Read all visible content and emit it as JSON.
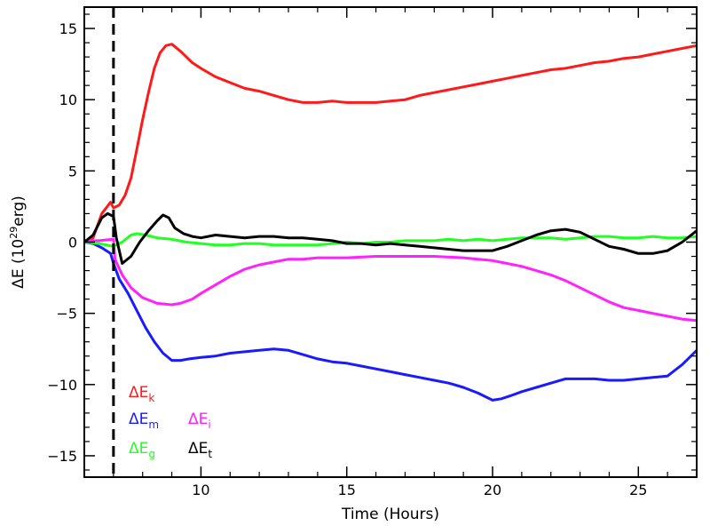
{
  "chart_data": {
    "type": "line",
    "xlabel": "Time (Hours)",
    "ylabel": {
      "base": "ΔE  (10",
      "sup": "29",
      "suffix": "erg)"
    },
    "xlim": [
      6,
      27
    ],
    "ylim": [
      -16.5,
      16.5
    ],
    "x_ticks": [
      10,
      15,
      20,
      25
    ],
    "y_ticks": [
      -15,
      -10,
      -5,
      0,
      5,
      10,
      15
    ],
    "x_tick_labels": [
      "10",
      "15",
      "20",
      "25"
    ],
    "y_tick_labels": [
      "−15",
      "−10",
      "−5",
      "0",
      "5",
      "10",
      "15"
    ],
    "grid": false,
    "vline": {
      "x": 7.0,
      "style": "dashed"
    },
    "legend": [
      {
        "series": "Ek",
        "symbol": "ΔE",
        "sub": "k",
        "color": "#ff1a1a"
      },
      {
        "series": "Em",
        "symbol": "ΔE",
        "sub": "m",
        "color": "#1a1aff"
      },
      {
        "series": "Ei",
        "symbol": "ΔE",
        "sub": "i",
        "color": "#ff22ff"
      },
      {
        "series": "Eg",
        "symbol": "ΔE",
        "sub": "g",
        "color": "#22ff22"
      },
      {
        "series": "Et",
        "symbol": "ΔE",
        "sub": "t",
        "color": "#000000"
      }
    ],
    "series": [
      {
        "id": "Ek",
        "color": "#ff1a1a",
        "points": [
          [
            6,
            0
          ],
          [
            6.3,
            0.3
          ],
          [
            6.6,
            2.0
          ],
          [
            6.9,
            2.8
          ],
          [
            7.0,
            2.4
          ],
          [
            7.2,
            2.6
          ],
          [
            7.4,
            3.3
          ],
          [
            7.6,
            4.5
          ],
          [
            7.8,
            6.5
          ],
          [
            8.0,
            8.6
          ],
          [
            8.2,
            10.5
          ],
          [
            8.4,
            12.2
          ],
          [
            8.6,
            13.3
          ],
          [
            8.8,
            13.8
          ],
          [
            9.0,
            13.9
          ],
          [
            9.3,
            13.4
          ],
          [
            9.7,
            12.6
          ],
          [
            10,
            12.2
          ],
          [
            10.5,
            11.6
          ],
          [
            11,
            11.2
          ],
          [
            11.5,
            10.8
          ],
          [
            12,
            10.6
          ],
          [
            12.5,
            10.3
          ],
          [
            13,
            10.0
          ],
          [
            13.5,
            9.8
          ],
          [
            14,
            9.8
          ],
          [
            14.5,
            9.9
          ],
          [
            15,
            9.8
          ],
          [
            15.5,
            9.8
          ],
          [
            16,
            9.8
          ],
          [
            16.5,
            9.9
          ],
          [
            17,
            10.0
          ],
          [
            17.5,
            10.3
          ],
          [
            18,
            10.5
          ],
          [
            18.5,
            10.7
          ],
          [
            19,
            10.9
          ],
          [
            19.5,
            11.1
          ],
          [
            20,
            11.3
          ],
          [
            20.5,
            11.5
          ],
          [
            21,
            11.7
          ],
          [
            21.5,
            11.9
          ],
          [
            22,
            12.1
          ],
          [
            22.5,
            12.2
          ],
          [
            23,
            12.4
          ],
          [
            23.5,
            12.6
          ],
          [
            24,
            12.7
          ],
          [
            24.5,
            12.9
          ],
          [
            25,
            13.0
          ],
          [
            25.5,
            13.2
          ],
          [
            26,
            13.4
          ],
          [
            26.5,
            13.6
          ],
          [
            27,
            13.8
          ]
        ]
      },
      {
        "id": "Em",
        "color": "#1a1aff",
        "points": [
          [
            6,
            0
          ],
          [
            6.3,
            -0.1
          ],
          [
            6.6,
            -0.4
          ],
          [
            6.9,
            -0.8
          ],
          [
            7.0,
            -1.5
          ],
          [
            7.2,
            -2.6
          ],
          [
            7.5,
            -3.6
          ],
          [
            7.8,
            -4.8
          ],
          [
            8.1,
            -6.0
          ],
          [
            8.4,
            -7.0
          ],
          [
            8.7,
            -7.8
          ],
          [
            9.0,
            -8.3
          ],
          [
            9.3,
            -8.3
          ],
          [
            9.6,
            -8.2
          ],
          [
            10,
            -8.1
          ],
          [
            10.5,
            -8.0
          ],
          [
            11,
            -7.8
          ],
          [
            11.5,
            -7.7
          ],
          [
            12,
            -7.6
          ],
          [
            12.5,
            -7.5
          ],
          [
            13,
            -7.6
          ],
          [
            13.5,
            -7.9
          ],
          [
            14,
            -8.2
          ],
          [
            14.5,
            -8.4
          ],
          [
            15,
            -8.5
          ],
          [
            15.5,
            -8.7
          ],
          [
            16,
            -8.9
          ],
          [
            16.5,
            -9.1
          ],
          [
            17,
            -9.3
          ],
          [
            17.5,
            -9.5
          ],
          [
            18,
            -9.7
          ],
          [
            18.5,
            -9.9
          ],
          [
            19,
            -10.2
          ],
          [
            19.5,
            -10.6
          ],
          [
            20,
            -11.1
          ],
          [
            20.3,
            -11.0
          ],
          [
            20.6,
            -10.8
          ],
          [
            21,
            -10.5
          ],
          [
            21.5,
            -10.2
          ],
          [
            22,
            -9.9
          ],
          [
            22.5,
            -9.6
          ],
          [
            23,
            -9.6
          ],
          [
            23.5,
            -9.6
          ],
          [
            24,
            -9.7
          ],
          [
            24.5,
            -9.7
          ],
          [
            25,
            -9.6
          ],
          [
            25.5,
            -9.5
          ],
          [
            26,
            -9.4
          ],
          [
            26.5,
            -8.6
          ],
          [
            27,
            -7.6
          ]
        ]
      },
      {
        "id": "Ei",
        "color": "#ff22ff",
        "points": [
          [
            6,
            0.1
          ],
          [
            6.5,
            0.1
          ],
          [
            7.0,
            0.2
          ],
          [
            7.05,
            -1.2
          ],
          [
            7.3,
            -2.3
          ],
          [
            7.6,
            -3.2
          ],
          [
            8.0,
            -3.9
          ],
          [
            8.5,
            -4.3
          ],
          [
            9.0,
            -4.4
          ],
          [
            9.3,
            -4.3
          ],
          [
            9.7,
            -4.0
          ],
          [
            10,
            -3.6
          ],
          [
            10.5,
            -3.0
          ],
          [
            11,
            -2.4
          ],
          [
            11.5,
            -1.9
          ],
          [
            12,
            -1.6
          ],
          [
            12.5,
            -1.4
          ],
          [
            13,
            -1.2
          ],
          [
            13.5,
            -1.2
          ],
          [
            14,
            -1.1
          ],
          [
            15,
            -1.1
          ],
          [
            16,
            -1.0
          ],
          [
            17,
            -1.0
          ],
          [
            18,
            -1.0
          ],
          [
            19,
            -1.1
          ],
          [
            19.5,
            -1.2
          ],
          [
            20,
            -1.3
          ],
          [
            20.5,
            -1.5
          ],
          [
            21,
            -1.7
          ],
          [
            21.5,
            -2.0
          ],
          [
            22,
            -2.3
          ],
          [
            22.5,
            -2.7
          ],
          [
            23,
            -3.2
          ],
          [
            23.5,
            -3.7
          ],
          [
            24,
            -4.2
          ],
          [
            24.5,
            -4.6
          ],
          [
            25,
            -4.8
          ],
          [
            25.5,
            -5.0
          ],
          [
            26,
            -5.2
          ],
          [
            26.5,
            -5.4
          ],
          [
            27,
            -5.5
          ]
        ]
      },
      {
        "id": "Eg",
        "color": "#22ff22",
        "points": [
          [
            6,
            0
          ],
          [
            6.5,
            -0.1
          ],
          [
            7.0,
            -0.3
          ],
          [
            7.3,
            0
          ],
          [
            7.6,
            0.5
          ],
          [
            7.8,
            0.6
          ],
          [
            8.1,
            0.5
          ],
          [
            8.5,
            0.3
          ],
          [
            9,
            0.2
          ],
          [
            9.5,
            0
          ],
          [
            10,
            -0.1
          ],
          [
            10.5,
            -0.2
          ],
          [
            11,
            -0.2
          ],
          [
            11.5,
            -0.1
          ],
          [
            12,
            -0.1
          ],
          [
            12.5,
            -0.2
          ],
          [
            13,
            -0.2
          ],
          [
            13.5,
            -0.2
          ],
          [
            14,
            -0.2
          ],
          [
            14.5,
            -0.1
          ],
          [
            15,
            0
          ],
          [
            15.5,
            -0.1
          ],
          [
            16,
            0
          ],
          [
            16.5,
            0
          ],
          [
            17,
            0.1
          ],
          [
            17.5,
            0.1
          ],
          [
            18,
            0.1
          ],
          [
            18.5,
            0.2
          ],
          [
            19,
            0.1
          ],
          [
            19.5,
            0.2
          ],
          [
            20,
            0.1
          ],
          [
            20.5,
            0.2
          ],
          [
            21,
            0.3
          ],
          [
            21.5,
            0.3
          ],
          [
            22,
            0.3
          ],
          [
            22.5,
            0.2
          ],
          [
            23,
            0.3
          ],
          [
            23.5,
            0.4
          ],
          [
            24,
            0.4
          ],
          [
            24.5,
            0.3
          ],
          [
            25,
            0.3
          ],
          [
            25.5,
            0.4
          ],
          [
            26,
            0.3
          ],
          [
            26.5,
            0.3
          ],
          [
            27,
            0.4
          ]
        ]
      },
      {
        "id": "Et",
        "color": "#000000",
        "points": [
          [
            6,
            0
          ],
          [
            6.3,
            0.5
          ],
          [
            6.6,
            1.7
          ],
          [
            6.8,
            2.0
          ],
          [
            7.0,
            1.8
          ],
          [
            7.1,
            0.3
          ],
          [
            7.3,
            -1.5
          ],
          [
            7.6,
            -1.0
          ],
          [
            7.9,
            0
          ],
          [
            8.2,
            0.8
          ],
          [
            8.5,
            1.5
          ],
          [
            8.7,
            1.9
          ],
          [
            8.9,
            1.7
          ],
          [
            9.1,
            1.0
          ],
          [
            9.4,
            0.6
          ],
          [
            9.7,
            0.4
          ],
          [
            10,
            0.3
          ],
          [
            10.5,
            0.5
          ],
          [
            11,
            0.4
          ],
          [
            11.5,
            0.3
          ],
          [
            12,
            0.4
          ],
          [
            12.5,
            0.4
          ],
          [
            13,
            0.3
          ],
          [
            13.5,
            0.3
          ],
          [
            14,
            0.2
          ],
          [
            14.5,
            0.1
          ],
          [
            15,
            -0.1
          ],
          [
            15.5,
            -0.1
          ],
          [
            16,
            -0.2
          ],
          [
            16.5,
            -0.1
          ],
          [
            17,
            -0.2
          ],
          [
            17.5,
            -0.3
          ],
          [
            18,
            -0.4
          ],
          [
            18.5,
            -0.5
          ],
          [
            19,
            -0.6
          ],
          [
            19.5,
            -0.6
          ],
          [
            20,
            -0.6
          ],
          [
            20.5,
            -0.3
          ],
          [
            21,
            0.1
          ],
          [
            21.5,
            0.5
          ],
          [
            22,
            0.8
          ],
          [
            22.5,
            0.9
          ],
          [
            23,
            0.7
          ],
          [
            23.5,
            0.2
          ],
          [
            24,
            -0.3
          ],
          [
            24.5,
            -0.5
          ],
          [
            25,
            -0.8
          ],
          [
            25.5,
            -0.8
          ],
          [
            26,
            -0.6
          ],
          [
            26.5,
            0
          ],
          [
            27,
            0.8
          ]
        ]
      }
    ]
  }
}
